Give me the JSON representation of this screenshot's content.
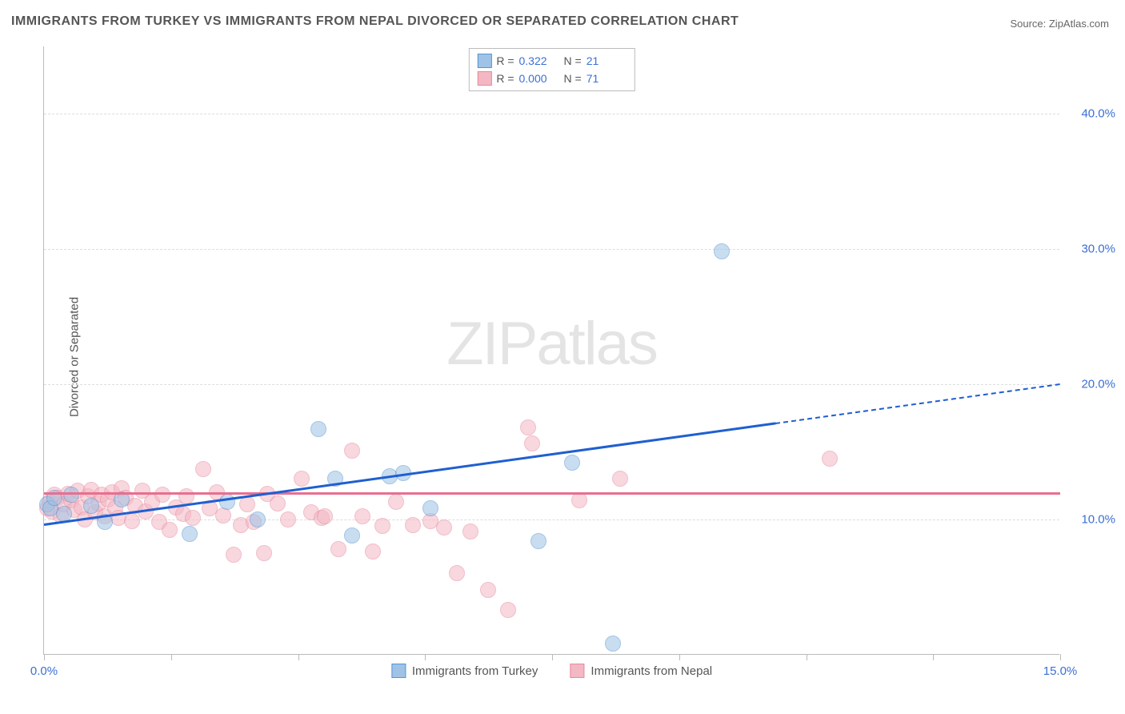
{
  "title": "IMMIGRANTS FROM TURKEY VS IMMIGRANTS FROM NEPAL DIVORCED OR SEPARATED CORRELATION CHART",
  "source_prefix": "Source: ",
  "source_name": "ZipAtlas.com",
  "watermark": "ZIPatlas",
  "y_axis_label": "Divorced or Separated",
  "chart": {
    "type": "scatter",
    "xlim": [
      0,
      15
    ],
    "ylim": [
      0,
      45
    ],
    "background_color": "#ffffff",
    "grid_color": "#dddddd",
    "axis_color": "#bbbbbb",
    "tick_label_color": "#3b6fd6",
    "tick_label_fontsize": 15,
    "y_ticks": [
      {
        "value": 10,
        "label": "10.0%"
      },
      {
        "value": 20,
        "label": "20.0%"
      },
      {
        "value": 30,
        "label": "30.0%"
      },
      {
        "value": 40,
        "label": "40.0%"
      }
    ],
    "x_tick_values": [
      0,
      1.875,
      3.75,
      5.625,
      7.5,
      9.375,
      11.25,
      13.125,
      15
    ],
    "x_tick_labels": [
      {
        "value": 0,
        "label": "0.0%"
      },
      {
        "value": 15,
        "label": "15.0%"
      }
    ],
    "point_radius": 10,
    "point_opacity": 0.55
  },
  "series": [
    {
      "name": "Immigrants from Turkey",
      "fill_color": "#9ec3e6",
      "stroke_color": "#5a94d0",
      "trend_color": "#1f5fd0",
      "r_label": "R = ",
      "r_value": "0.322",
      "n_label": "N = ",
      "n_value": "21",
      "trend": {
        "x1": 0,
        "y1": 9.7,
        "x2": 10.8,
        "y2": 17.2,
        "x2_dash": 15,
        "y2_dash": 20.1
      },
      "points": [
        [
          0.05,
          12.3
        ],
        [
          0.1,
          12.0
        ],
        [
          0.15,
          12.8
        ],
        [
          0.3,
          11.6
        ],
        [
          1.15,
          12.7
        ],
        [
          2.15,
          10.1
        ],
        [
          2.7,
          12.5
        ],
        [
          3.15,
          11.2
        ],
        [
          4.05,
          17.9
        ],
        [
          4.3,
          14.2
        ],
        [
          4.55,
          10.0
        ],
        [
          5.1,
          14.4
        ],
        [
          5.7,
          12.0
        ],
        [
          5.3,
          14.6
        ],
        [
          7.8,
          15.4
        ],
        [
          7.3,
          9.6
        ],
        [
          8.4,
          2.0
        ],
        [
          10.0,
          31.0
        ],
        [
          0.4,
          13.0
        ],
        [
          0.7,
          12.2
        ],
        [
          0.9,
          11.0
        ]
      ]
    },
    {
      "name": "Immigrants from Nepal",
      "fill_color": "#f4b7c4",
      "stroke_color": "#e58ba0",
      "trend_color": "#e86f8f",
      "r_label": "R = ",
      "r_value": "0.000",
      "n_label": "N = ",
      "n_value": "71",
      "trend": {
        "x1": 0,
        "y1": 12.0,
        "x2": 15,
        "y2": 12.0
      },
      "points": [
        [
          0.05,
          12.0
        ],
        [
          0.08,
          12.5
        ],
        [
          0.12,
          11.8
        ],
        [
          0.15,
          13.0
        ],
        [
          0.2,
          12.8
        ],
        [
          0.25,
          11.5
        ],
        [
          0.3,
          12.3
        ],
        [
          0.35,
          13.1
        ],
        [
          0.4,
          12.6
        ],
        [
          0.45,
          11.9
        ],
        [
          0.5,
          13.3
        ],
        [
          0.55,
          12.1
        ],
        [
          0.6,
          11.2
        ],
        [
          0.65,
          12.9
        ],
        [
          0.7,
          13.4
        ],
        [
          0.75,
          11.7
        ],
        [
          0.8,
          12.4
        ],
        [
          0.85,
          13.0
        ],
        [
          0.9,
          11.4
        ],
        [
          0.95,
          12.7
        ],
        [
          1.0,
          13.2
        ],
        [
          1.05,
          12.0
        ],
        [
          1.1,
          11.3
        ],
        [
          1.15,
          13.5
        ],
        [
          1.2,
          12.8
        ],
        [
          1.3,
          11.1
        ],
        [
          1.35,
          12.2
        ],
        [
          1.45,
          13.3
        ],
        [
          1.5,
          11.8
        ],
        [
          1.6,
          12.5
        ],
        [
          1.7,
          11.0
        ],
        [
          1.75,
          13.0
        ],
        [
          1.85,
          10.4
        ],
        [
          1.95,
          12.1
        ],
        [
          2.05,
          11.6
        ],
        [
          2.1,
          12.9
        ],
        [
          2.2,
          11.3
        ],
        [
          2.35,
          14.9
        ],
        [
          2.45,
          12.0
        ],
        [
          2.55,
          13.2
        ],
        [
          2.65,
          11.5
        ],
        [
          2.8,
          8.6
        ],
        [
          2.9,
          10.8
        ],
        [
          3.0,
          12.3
        ],
        [
          3.1,
          11.0
        ],
        [
          3.3,
          13.1
        ],
        [
          3.45,
          12.4
        ],
        [
          3.6,
          11.2
        ],
        [
          3.8,
          14.2
        ],
        [
          3.95,
          11.7
        ],
        [
          4.1,
          11.3
        ],
        [
          4.15,
          11.4
        ],
        [
          4.35,
          9.0
        ],
        [
          4.55,
          16.3
        ],
        [
          4.7,
          11.4
        ],
        [
          4.85,
          8.8
        ],
        [
          5.0,
          10.7
        ],
        [
          5.2,
          12.5
        ],
        [
          5.45,
          10.8
        ],
        [
          5.7,
          11.1
        ],
        [
          5.9,
          10.6
        ],
        [
          6.1,
          7.2
        ],
        [
          6.3,
          10.3
        ],
        [
          6.55,
          6.0
        ],
        [
          6.85,
          4.5
        ],
        [
          7.15,
          18.0
        ],
        [
          7.2,
          16.8
        ],
        [
          7.9,
          12.6
        ],
        [
          8.5,
          14.2
        ],
        [
          11.6,
          15.7
        ],
        [
          3.25,
          8.7
        ]
      ]
    }
  ]
}
